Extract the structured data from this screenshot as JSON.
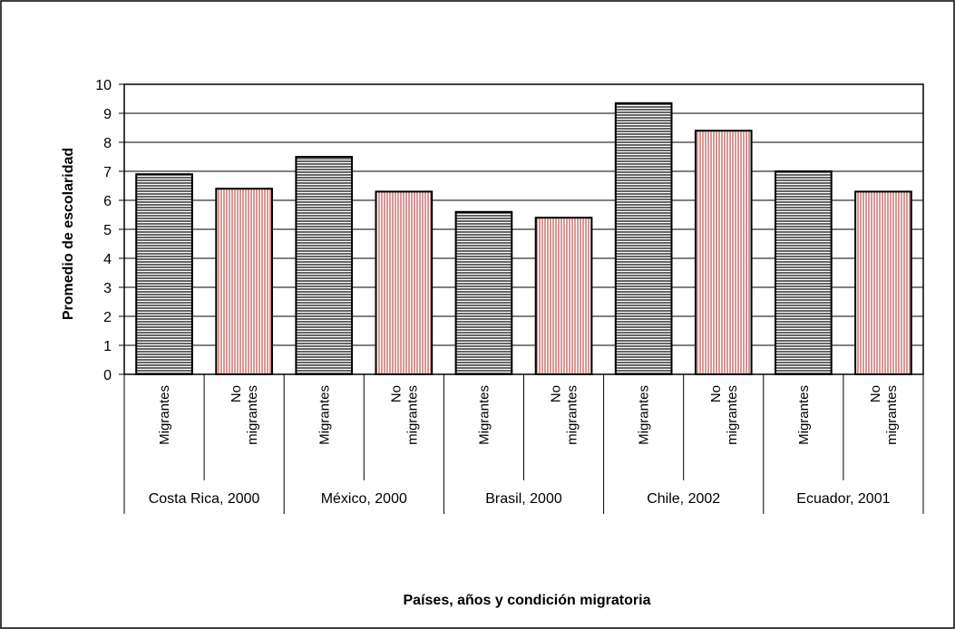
{
  "chart_data": {
    "type": "bar",
    "title": "",
    "xlabel": "Países, años y condición migratoria",
    "ylabel": "Promedio de escolaridad",
    "ylim": [
      0,
      10
    ],
    "yticks": [
      "0",
      "1",
      "2",
      "3",
      "4",
      "5",
      "6",
      "7",
      "8",
      "9",
      "10"
    ],
    "grid": true,
    "colors": {
      "migrantes": "#000000",
      "no_migrantes": "#c0504d"
    },
    "groups": [
      {
        "label": "Costa Rica, 2000",
        "bars": [
          {
            "label": "Migrantes",
            "value": 6.9
          },
          {
            "label": "No migrantes",
            "value": 6.4
          }
        ]
      },
      {
        "label": "México, 2000",
        "bars": [
          {
            "label": "Migrantes",
            "value": 7.5
          },
          {
            "label": "No migrantes",
            "value": 6.3
          }
        ]
      },
      {
        "label": "Brasil, 2000",
        "bars": [
          {
            "label": "Migrantes",
            "value": 5.6
          },
          {
            "label": "No migrantes",
            "value": 5.4
          }
        ]
      },
      {
        "label": "Chile, 2002",
        "bars": [
          {
            "label": "Migrantes",
            "value": 9.35
          },
          {
            "label": "No migrantes",
            "value": 8.4
          }
        ]
      },
      {
        "label": "Ecuador, 2001",
        "bars": [
          {
            "label": "Migrantes",
            "value": 7.0
          },
          {
            "label": "No migrantes",
            "value": 6.3
          }
        ]
      }
    ]
  }
}
